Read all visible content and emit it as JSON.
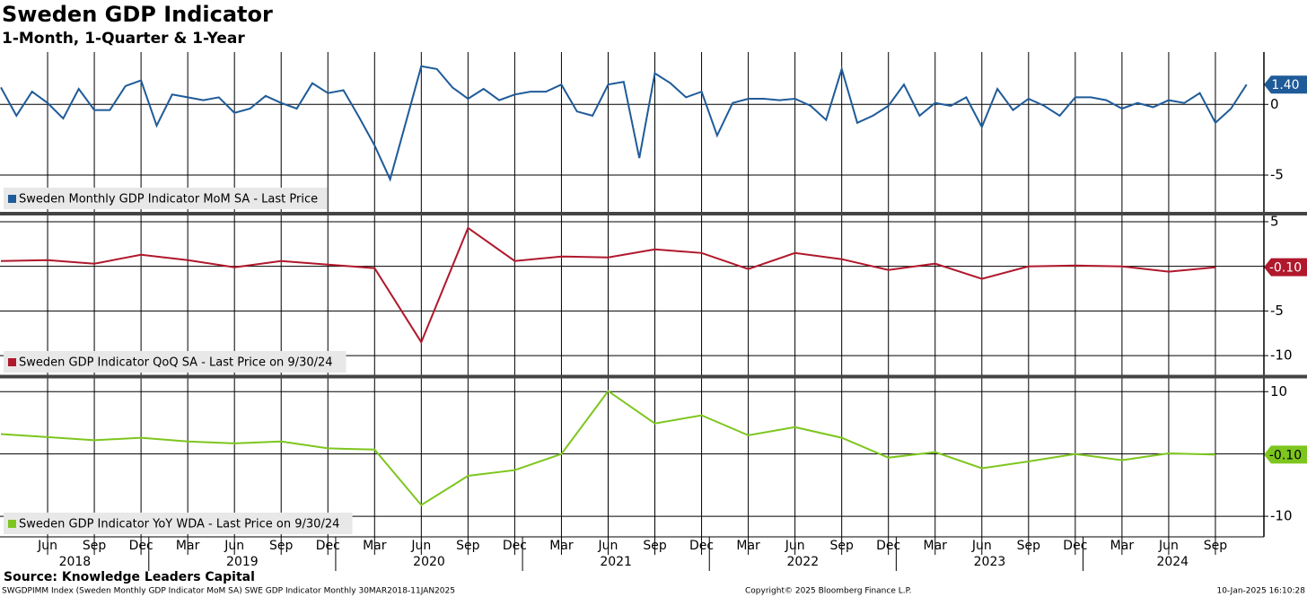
{
  "title": "Sweden GDP Indicator",
  "subtitle": "1-Month, 1-Quarter & 1-Year",
  "source": "Source: Knowledge Leaders Capital",
  "footer_left": "SWGDPIMM Index (Sweden Monthly GDP Indicator MoM SA) SWE GDP Indicator  Monthly 30MAR2018-11JAN2025",
  "footer_center": "Copyright© 2025 Bloomberg Finance L.P.",
  "footer_right": "10-Jan-2025 16:10:28",
  "x_axis": {
    "xlim": [
      "2018-03",
      "2024-12"
    ],
    "xticks": [
      {
        "value": "2018-06",
        "label": "Jun"
      },
      {
        "value": "2018-09",
        "label": "Sep"
      },
      {
        "value": "2018-12",
        "label": "Dec"
      },
      {
        "value": "2019-03",
        "label": "Mar"
      },
      {
        "value": "2019-06",
        "label": "Jun"
      },
      {
        "value": "2019-09",
        "label": "Sep"
      },
      {
        "value": "2019-12",
        "label": "Dec"
      },
      {
        "value": "2020-03",
        "label": "Mar"
      },
      {
        "value": "2020-06",
        "label": "Jun"
      },
      {
        "value": "2020-09",
        "label": "Sep"
      },
      {
        "value": "2020-12",
        "label": "Dec"
      },
      {
        "value": "2021-03",
        "label": "Mar"
      },
      {
        "value": "2021-06",
        "label": "Jun"
      },
      {
        "value": "2021-09",
        "label": "Sep"
      },
      {
        "value": "2021-12",
        "label": "Dec"
      },
      {
        "value": "2022-03",
        "label": "Mar"
      },
      {
        "value": "2022-06",
        "label": "Jun"
      },
      {
        "value": "2022-09",
        "label": "Sep"
      },
      {
        "value": "2022-12",
        "label": "Dec"
      },
      {
        "value": "2023-03",
        "label": "Mar"
      },
      {
        "value": "2023-06",
        "label": "Jun"
      },
      {
        "value": "2023-09",
        "label": "Sep"
      },
      {
        "value": "2023-12",
        "label": "Dec"
      },
      {
        "value": "2024-03",
        "label": "Mar"
      },
      {
        "value": "2024-06",
        "label": "Jun"
      },
      {
        "value": "2024-09",
        "label": "Sep"
      }
    ],
    "year_labels": [
      2018,
      2019,
      2020,
      2021,
      2022,
      2023,
      2024
    ]
  },
  "chart_data": [
    {
      "type": "line",
      "ylim": [
        -7.6,
        3.7
      ],
      "yticks": [
        0,
        -5
      ],
      "grid": true,
      "x": [
        "2018-03",
        "2018-04",
        "2018-05",
        "2018-06",
        "2018-07",
        "2018-08",
        "2018-09",
        "2018-10",
        "2018-11",
        "2018-12",
        "2019-01",
        "2019-02",
        "2019-03",
        "2019-04",
        "2019-05",
        "2019-06",
        "2019-07",
        "2019-08",
        "2019-09",
        "2019-10",
        "2019-11",
        "2019-12",
        "2020-01",
        "2020-02",
        "2020-03",
        "2020-04",
        "2020-05",
        "2020-06",
        "2020-07",
        "2020-08",
        "2020-09",
        "2020-10",
        "2020-11",
        "2020-12",
        "2021-01",
        "2021-02",
        "2021-03",
        "2021-04",
        "2021-05",
        "2021-06",
        "2021-07",
        "2021-08",
        "2021-09",
        "2021-10",
        "2021-11",
        "2021-12",
        "2022-01",
        "2022-02",
        "2022-03",
        "2022-04",
        "2022-05",
        "2022-06",
        "2022-07",
        "2022-08",
        "2022-09",
        "2022-10",
        "2022-11",
        "2022-12",
        "2023-01",
        "2023-02",
        "2023-03",
        "2023-04",
        "2023-05",
        "2023-06",
        "2023-07",
        "2023-08",
        "2023-09",
        "2023-10",
        "2023-11",
        "2023-12",
        "2024-01",
        "2024-02",
        "2024-03",
        "2024-04",
        "2024-05",
        "2024-06",
        "2024-07",
        "2024-08",
        "2024-09",
        "2024-10",
        "2024-11"
      ],
      "series": [
        {
          "name": "Sweden Monthly GDP Indicator MoM SA - Last Price",
          "color": "#1f5b99",
          "values": [
            1.2,
            -0.8,
            0.9,
            0.1,
            -1.0,
            1.1,
            -0.4,
            -0.4,
            1.3,
            1.7,
            -1.5,
            0.7,
            0.5,
            0.3,
            0.5,
            -0.6,
            -0.3,
            0.6,
            0.1,
            -0.3,
            1.5,
            0.8,
            1.0,
            -0.9,
            -2.9,
            -5.3,
            -1.3,
            2.7,
            2.5,
            1.2,
            0.4,
            1.1,
            0.3,
            0.7,
            0.9,
            0.9,
            1.4,
            -0.5,
            -0.8,
            1.4,
            1.6,
            -3.8,
            2.2,
            1.5,
            0.5,
            0.9,
            -2.2,
            0.1,
            0.4,
            0.4,
            0.3,
            0.4,
            -0.1,
            -1.1,
            2.5,
            -1.3,
            -0.8,
            -0.1,
            1.4,
            -0.8,
            0.1,
            -0.1,
            0.5,
            -1.6,
            1.1,
            -0.4,
            0.4,
            -0.1,
            -0.8,
            0.5,
            0.5,
            0.3,
            -0.3,
            0.1,
            -0.2,
            0.3,
            0.1,
            0.8,
            -1.3,
            -0.3,
            1.4
          ],
          "value_labels": [
            null,
            null,
            null,
            null,
            null,
            null,
            null,
            null,
            null,
            null,
            null,
            null,
            null,
            null,
            null,
            null,
            null,
            null,
            null,
            null,
            null,
            null,
            null,
            null,
            null,
            null,
            null,
            null,
            null,
            null,
            null,
            null,
            null,
            null,
            null,
            null,
            null,
            null,
            null,
            null,
            null,
            null,
            null,
            null,
            null,
            null,
            null,
            null,
            null,
            null,
            null,
            null,
            null,
            null,
            null,
            null,
            null,
            null,
            null,
            null,
            null,
            null,
            null,
            null,
            null,
            null,
            null,
            null,
            null,
            null,
            null,
            null,
            null,
            null,
            null,
            null,
            null,
            null,
            null,
            null,
            "1.40"
          ]
        }
      ]
    },
    {
      "type": "line",
      "ylim": [
        -12.2,
        5.7
      ],
      "yticks": [
        5,
        0,
        -5,
        -10
      ],
      "grid": true,
      "x": [
        "2018-03",
        "2018-06",
        "2018-09",
        "2018-12",
        "2019-03",
        "2019-06",
        "2019-09",
        "2019-12",
        "2020-03",
        "2020-06",
        "2020-09",
        "2020-12",
        "2021-03",
        "2021-06",
        "2021-09",
        "2021-12",
        "2022-03",
        "2022-06",
        "2022-09",
        "2022-12",
        "2023-03",
        "2023-06",
        "2023-09",
        "2023-12",
        "2024-03",
        "2024-06",
        "2024-09"
      ],
      "series": [
        {
          "name": "Sweden GDP Indicator QoQ SA - Last Price on 9/30/24",
          "color": "#b0182c",
          "values": [
            0.6,
            0.7,
            0.3,
            1.3,
            0.7,
            -0.1,
            0.6,
            0.2,
            -0.2,
            -8.5,
            4.3,
            0.6,
            1.1,
            1.0,
            1.9,
            1.5,
            -0.3,
            1.5,
            0.8,
            -0.4,
            0.3,
            -1.4,
            0.0,
            0.1,
            0.0,
            -0.6,
            -0.1
          ],
          "value_labels": [
            null,
            null,
            null,
            null,
            null,
            null,
            null,
            null,
            null,
            null,
            null,
            null,
            null,
            null,
            null,
            null,
            null,
            null,
            null,
            null,
            null,
            null,
            null,
            null,
            null,
            null,
            "-0.10"
          ]
        }
      ]
    },
    {
      "type": "line",
      "ylim": [
        -13.3,
        12.2
      ],
      "yticks": [
        10,
        0,
        -10
      ],
      "grid": true,
      "x": [
        "2018-03",
        "2018-06",
        "2018-09",
        "2018-12",
        "2019-03",
        "2019-06",
        "2019-09",
        "2019-12",
        "2020-03",
        "2020-06",
        "2020-09",
        "2020-12",
        "2021-03",
        "2021-06",
        "2021-09",
        "2021-12",
        "2022-03",
        "2022-06",
        "2022-09",
        "2022-12",
        "2023-03",
        "2023-06",
        "2023-09",
        "2023-12",
        "2024-03",
        "2024-06",
        "2024-09"
      ],
      "series": [
        {
          "name": "Sweden GDP Indicator YoY WDA - Last Price on 9/30/24",
          "color": "#7dc61e",
          "values": [
            3.2,
            2.7,
            2.2,
            2.6,
            2.0,
            1.7,
            2.0,
            0.9,
            0.7,
            -8.2,
            -3.5,
            -2.6,
            0.0,
            10.1,
            4.9,
            6.2,
            3.0,
            4.3,
            2.6,
            -0.6,
            0.3,
            -2.3,
            -1.2,
            0.0,
            -1.0,
            0.1,
            -0.1
          ],
          "value_labels": [
            null,
            null,
            null,
            null,
            null,
            null,
            null,
            null,
            null,
            null,
            null,
            null,
            null,
            null,
            null,
            null,
            null,
            null,
            null,
            null,
            null,
            null,
            null,
            null,
            null,
            null,
            "-0.10"
          ]
        }
      ]
    }
  ]
}
